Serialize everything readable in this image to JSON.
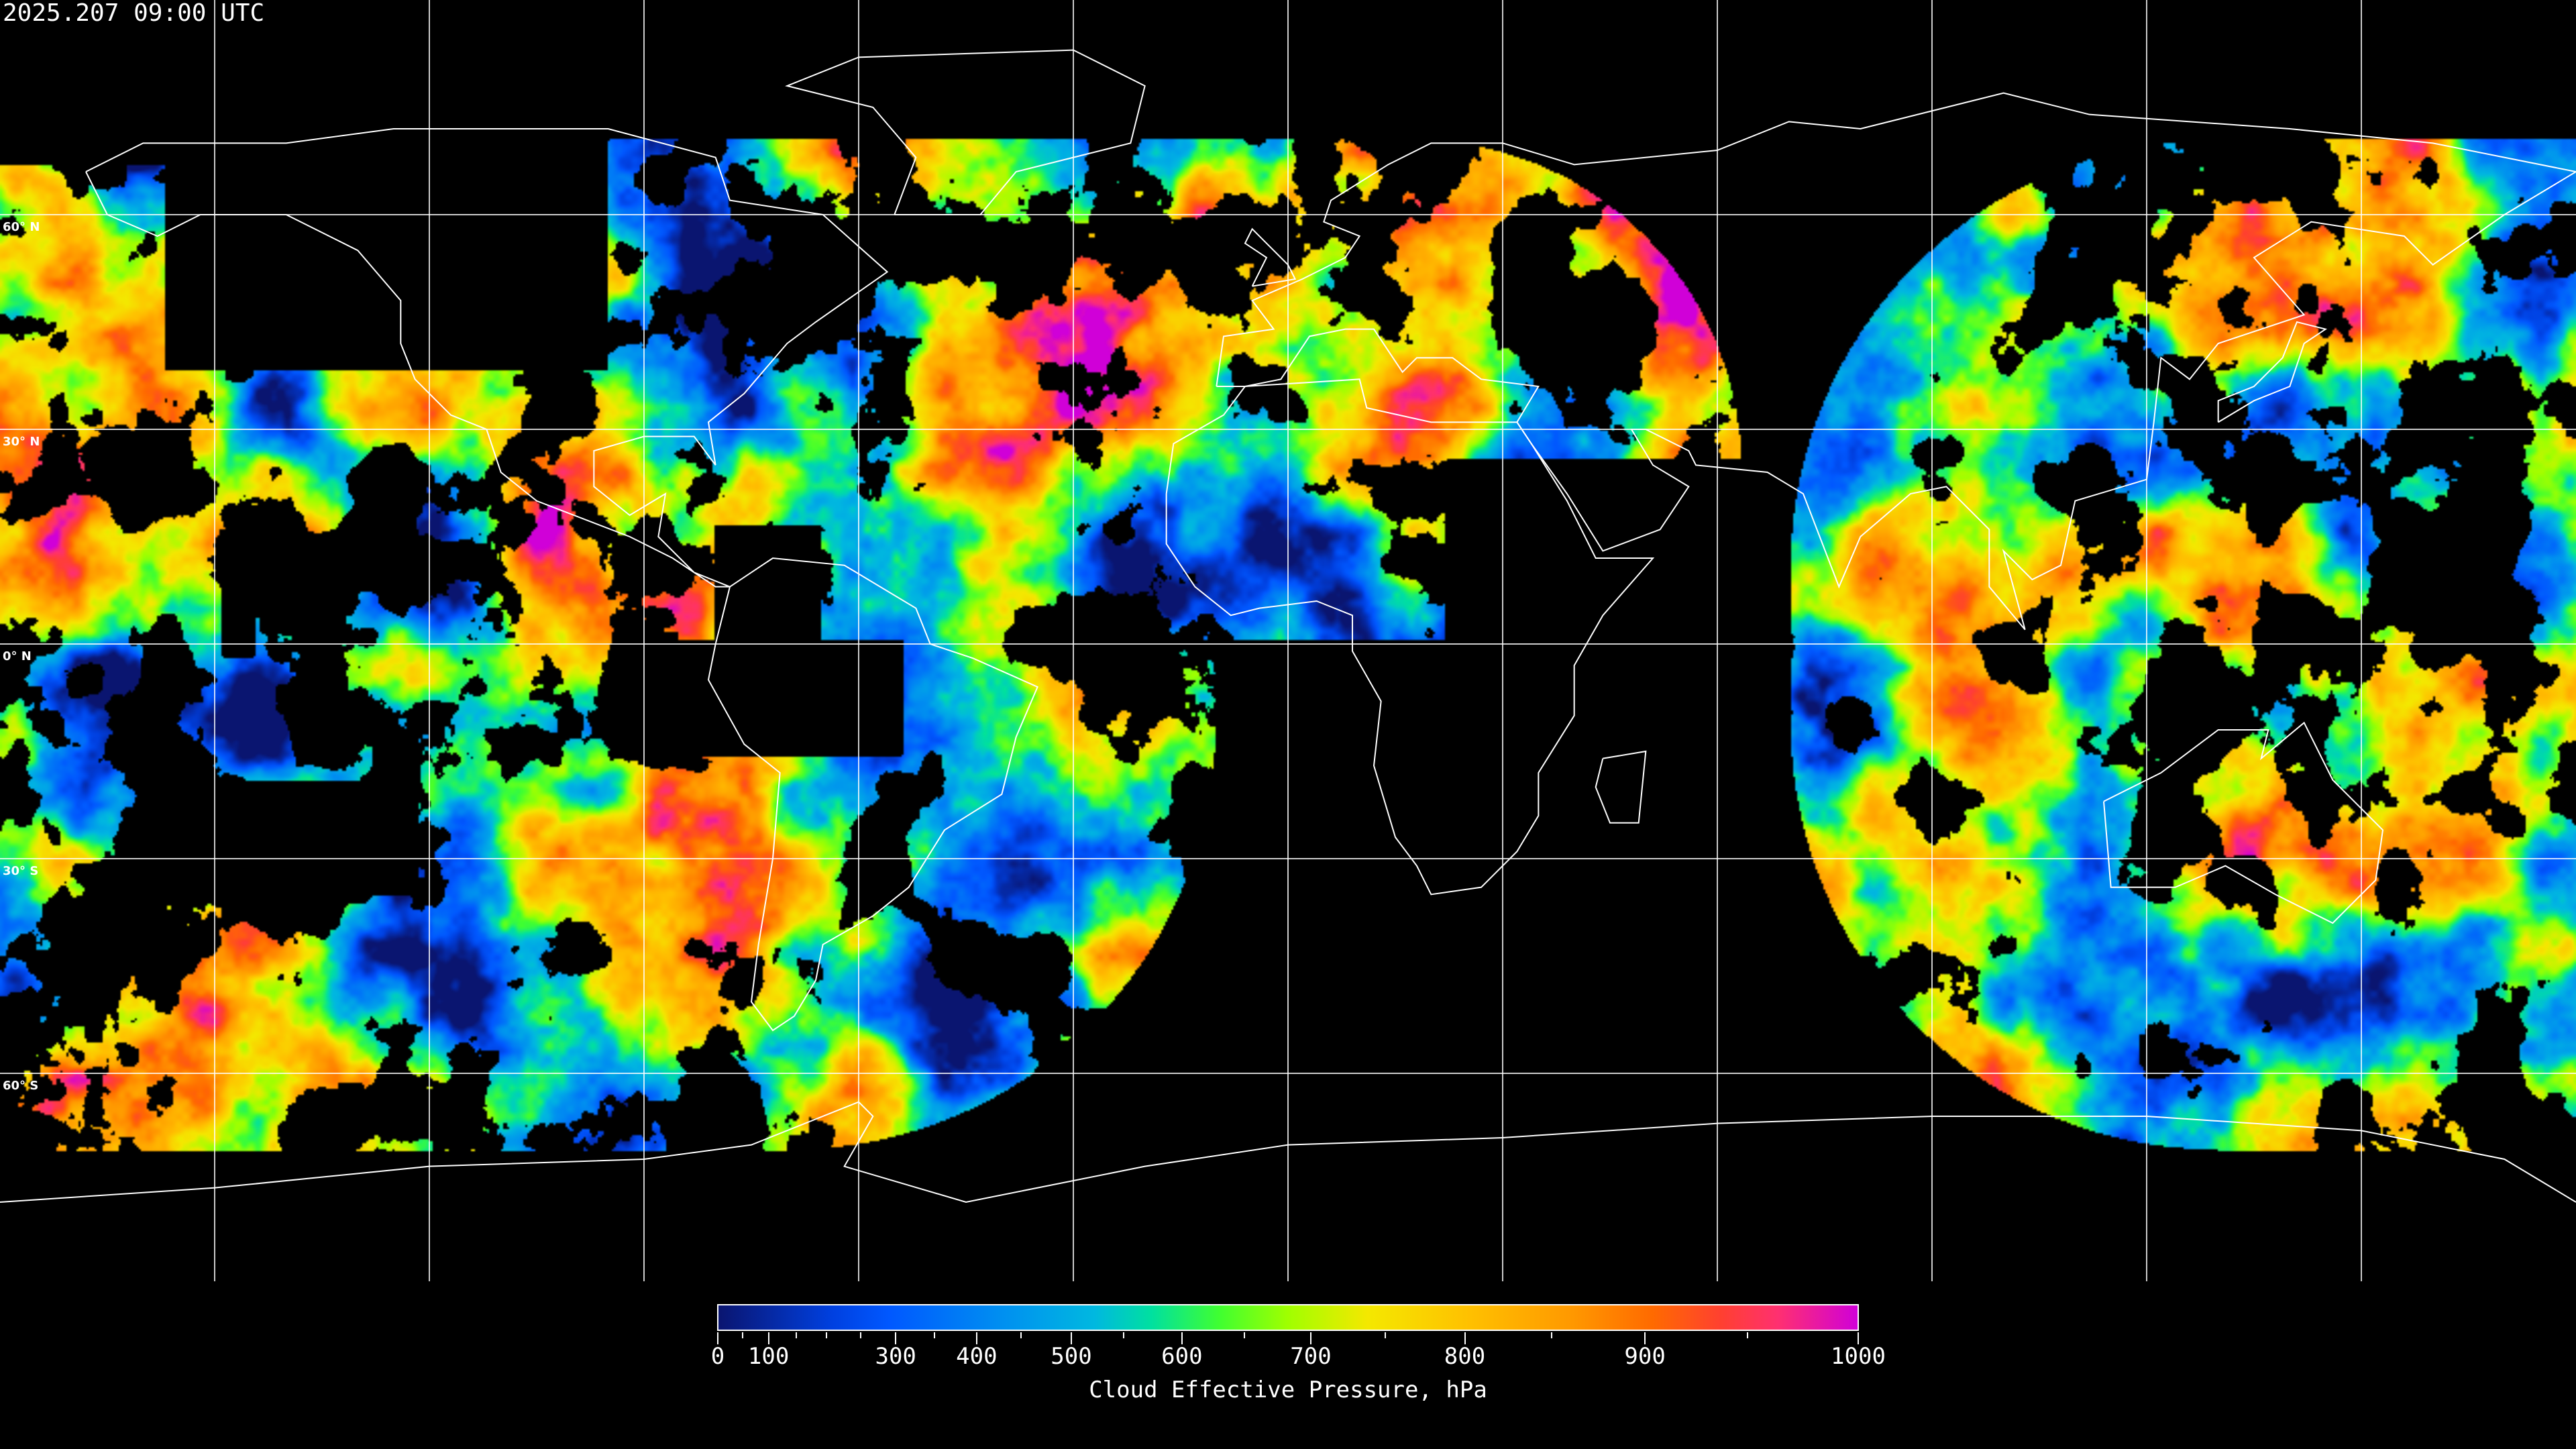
{
  "title": "2025.207 09:00 UTC",
  "map": {
    "projection": "equirectangular",
    "lon_range": [
      -180,
      180
    ],
    "lat_range": [
      -90,
      90
    ],
    "grid_lon_step": 30,
    "grid_lat_step": 30,
    "grid_color": "#ffffff",
    "coastline_color": "#ffffff",
    "lat_labels": [
      {
        "lat": 60,
        "text": "60° N"
      },
      {
        "lat": 30,
        "text": "30° N"
      },
      {
        "lat": 0,
        "text": "0° N"
      },
      {
        "lat": -30,
        "text": "30° S"
      },
      {
        "lat": -60,
        "text": "60° S"
      }
    ]
  },
  "colorbar": {
    "label": "Cloud Effective Pressure, hPa",
    "range": [
      0,
      1000
    ],
    "ticks": [
      {
        "value": 0,
        "text": "0",
        "pos": 0
      },
      {
        "value": 100,
        "text": "100",
        "pos": 0.0445
      },
      {
        "value": 300,
        "text": "300",
        "pos": 0.156
      },
      {
        "value": 400,
        "text": "400",
        "pos": 0.227
      },
      {
        "value": 500,
        "text": "500",
        "pos": 0.31
      },
      {
        "value": 600,
        "text": "600",
        "pos": 0.407
      },
      {
        "value": 700,
        "text": "700",
        "pos": 0.52
      },
      {
        "value": 800,
        "text": "800",
        "pos": 0.655
      },
      {
        "value": 900,
        "text": "900",
        "pos": 0.813
      },
      {
        "value": 1000,
        "text": "1000",
        "pos": 1
      }
    ],
    "minor_tick_pos": [
      0.022,
      0.069,
      0.095,
      0.125,
      0.19,
      0.266,
      0.356,
      0.462,
      0.585,
      0.731,
      0.903
    ],
    "colormap": [
      [
        "#0a1570",
        0
      ],
      [
        "#0040e0",
        0.1
      ],
      [
        "#0058ff",
        0.15
      ],
      [
        "#0090f0",
        0.25
      ],
      [
        "#00b8e0",
        0.33
      ],
      [
        "#00e0a0",
        0.38
      ],
      [
        "#40ff30",
        0.44
      ],
      [
        "#a0ff00",
        0.5
      ],
      [
        "#f4e800",
        0.57
      ],
      [
        "#ffc000",
        0.66
      ],
      [
        "#ff9800",
        0.75
      ],
      [
        "#ff6a00",
        0.82
      ],
      [
        "#ff4030",
        0.88
      ],
      [
        "#ff3070",
        0.93
      ],
      [
        "#d000d8",
        1
      ]
    ]
  }
}
